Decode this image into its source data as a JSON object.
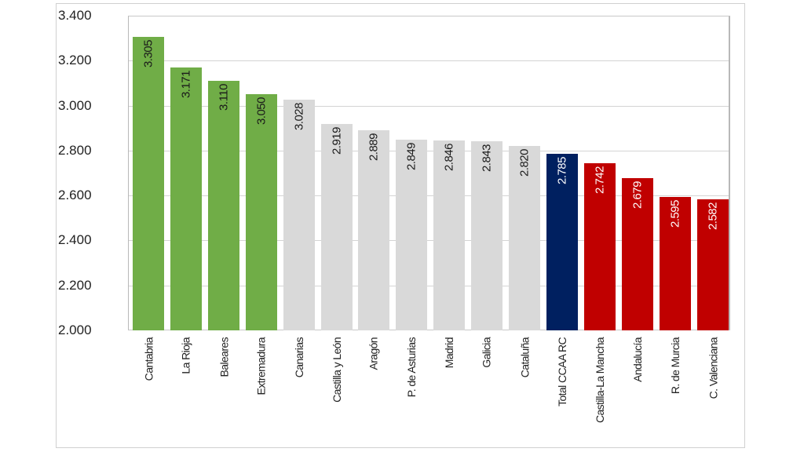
{
  "chart_data": {
    "type": "bar",
    "title": "",
    "xlabel": "",
    "ylabel": "",
    "ylim": [
      2.0,
      3.4
    ],
    "yticks": [
      "3.400",
      "3.200",
      "3.000",
      "2.800",
      "2.600",
      "2.400",
      "2.200",
      "2.000"
    ],
    "grid": true,
    "legend": null,
    "categories": [
      "Cantabria",
      "La Rioja",
      "Baleares",
      "Extremadura",
      "Canarias",
      "Castilla y León",
      "Aragón",
      "P. de Asturias",
      "Madrid",
      "Galicia",
      "Cataluña",
      "Total CCAA RC",
      "Castilla-La Mancha",
      "Andalucía",
      "R. de Murcia",
      "C. Valenciana"
    ],
    "values": [
      3.305,
      3.171,
      3.11,
      3.05,
      3.028,
      2.919,
      2.889,
      2.849,
      2.846,
      2.843,
      2.82,
      2.785,
      2.742,
      2.679,
      2.595,
      2.582
    ],
    "value_labels": [
      "3.305",
      "3.171",
      "3.110",
      "3.050",
      "3.028",
      "2.919",
      "2.889",
      "2.849",
      "2.846",
      "2.843",
      "2.820",
      "2.785",
      "2.742",
      "2.679",
      "2.595",
      "2.582"
    ],
    "bar_groups": [
      "high",
      "high",
      "high",
      "high",
      "mid",
      "mid",
      "mid",
      "mid",
      "mid",
      "mid",
      "mid",
      "total",
      "low",
      "low",
      "low",
      "low"
    ],
    "colors": {
      "high": "#70AD47",
      "mid": "#D9D9D9",
      "total": "#002060",
      "low": "#C00000"
    },
    "label_colors": {
      "high": "#1a1a1a",
      "mid": "#1a1a1a",
      "total": "#ffffff",
      "low": "#ffffff"
    }
  }
}
